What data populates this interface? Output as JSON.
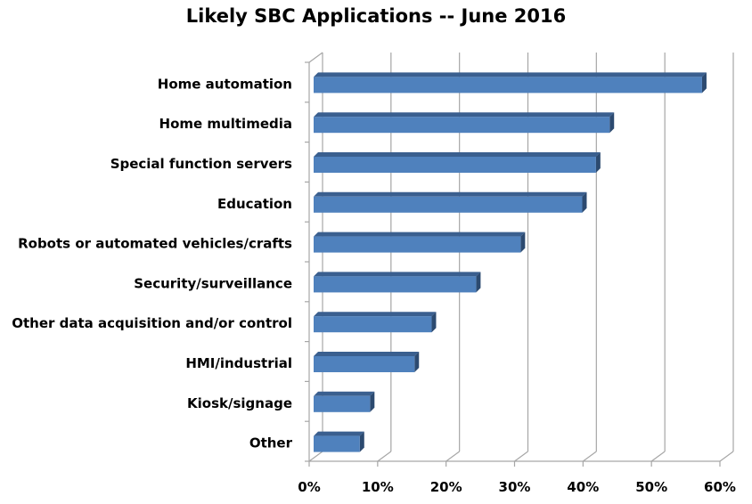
{
  "chart_data": {
    "type": "bar",
    "orientation": "horizontal",
    "style": "3d",
    "title": "Likely SBC Applications -- June 2016",
    "xlabel": "",
    "ylabel": "",
    "categories": [
      "Home automation",
      "Home multimedia",
      "Special function servers",
      "Education",
      "Robots or automated vehicles/crafts",
      "Security/surveillance",
      "Other data acquisition and/or control",
      "HMI/industrial",
      "Kiosk/signage",
      "Other"
    ],
    "values": [
      57,
      43.5,
      41.5,
      39.5,
      30.5,
      24,
      17.5,
      15,
      8.5,
      7
    ],
    "unit": "%",
    "xlim": [
      0,
      60
    ],
    "xticks": [
      "0%",
      "10%",
      "20%",
      "30%",
      "40%",
      "50%",
      "60%"
    ],
    "grid": true,
    "legend": "none",
    "bar_color": "#4f81bd",
    "bar_top_color": "#3a5f8f",
    "bar_side_color": "#2c4a70"
  }
}
